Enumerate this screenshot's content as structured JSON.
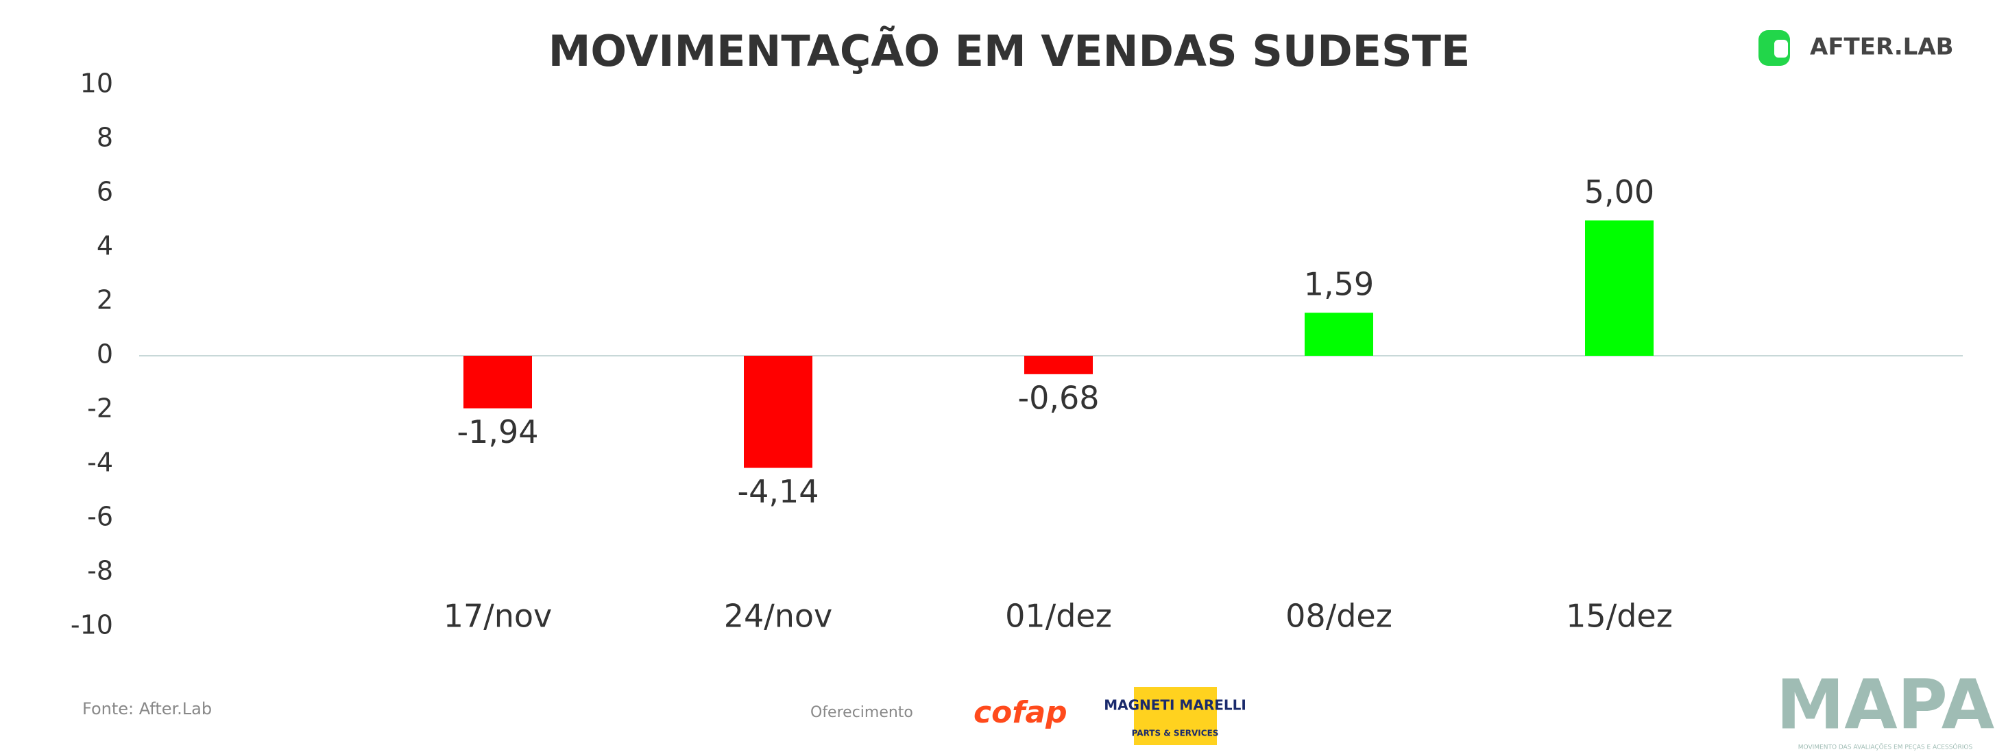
{
  "chart_data": {
    "type": "bar",
    "title": "MOVIMENTAÇÃO EM VENDAS SUDESTE",
    "categories": [
      "17/nov",
      "24/nov",
      "01/dez",
      "08/dez",
      "15/dez"
    ],
    "values": [
      -1.94,
      -4.14,
      -0.68,
      1.59,
      5.0
    ],
    "value_labels": [
      "-1,94",
      "-4,14",
      "-0,68",
      "1,59",
      "5,00"
    ],
    "colors": [
      "#ff0000",
      "#ff0000",
      "#ff0000",
      "#00ff00",
      "#00ff00"
    ],
    "ylim": [
      -10,
      10
    ],
    "yticks": [
      -10,
      -8,
      -6,
      -4,
      -2,
      0,
      2,
      4,
      6,
      8,
      10
    ]
  },
  "brand": "AFTER.LAB",
  "footer": {
    "source": "Fonte: After.Lab",
    "sponsor_label": "Oferecimento",
    "sponsor_1": "cofap",
    "sponsor_2": "MAGNETI MARELLI",
    "sponsor_2_sub": "PARTS & SERVICES",
    "publisher": "MAPA",
    "publisher_sub": "MOVIMENTO DAS AVALIAÇÕES EM PEÇAS E ACESSÓRIOS"
  }
}
